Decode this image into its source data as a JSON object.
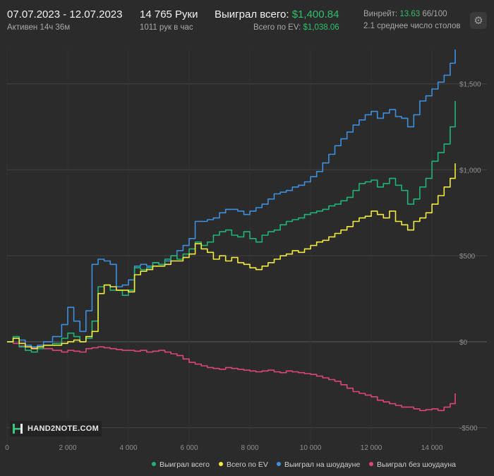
{
  "header": {
    "date_range": "07.07.2023 - 12.07.2023",
    "active": "Активен 14ч 36м",
    "hands": "14 765 Руки",
    "hands_per_hour": "1011 рук в час",
    "won_total_label": "Выиграл всего:",
    "won_total_value": "$1,400.84",
    "ev_total_label": "Всего по EV:",
    "ev_total_value": "$1,038.06",
    "winrate_label": "Винрейт:",
    "winrate_value": "13.63",
    "winrate_suffix": "66/100",
    "avg_tables": "2.1 среднее число столов"
  },
  "logo": {
    "text": "HAND2NOTE.COM"
  },
  "icons": {
    "settings": "gear-icon"
  },
  "colors": {
    "background": "#2b2b2b",
    "grid": "#444444",
    "won_total": "#1fb574",
    "ev": "#f2ea3c",
    "showdown": "#3d8fe0",
    "no_showdown": "#e0457a",
    "accent_green": "#2fc06a"
  },
  "chart_data": {
    "type": "line",
    "xlim": [
      0,
      14765
    ],
    "ylim": [
      -600,
      1700
    ],
    "x_ticks": [
      0,
      2000,
      4000,
      6000,
      8000,
      10000,
      12000,
      14000
    ],
    "x_tick_labels": [
      "0",
      "2 000",
      "4 000",
      "6 000",
      "8 000",
      "10 000",
      "12 000",
      "14 000"
    ],
    "y_ticks": [
      -500,
      0,
      500,
      1000,
      1500
    ],
    "y_tick_labels": [
      "-$500",
      "$0",
      "$500",
      "$1,000",
      "$1,500"
    ],
    "grid": true,
    "legend_position": "bottom-right",
    "series": [
      {
        "name": "Выиграл всего",
        "color_key": "won_total",
        "x": [
          0,
          200,
          400,
          600,
          800,
          1000,
          1200,
          1500,
          1800,
          2000,
          2200,
          2400,
          2600,
          2800,
          3000,
          3200,
          3400,
          3600,
          3800,
          4000,
          4200,
          4400,
          4600,
          4800,
          5000,
          5200,
          5400,
          5600,
          5800,
          6000,
          6200,
          6400,
          6600,
          6800,
          7000,
          7200,
          7400,
          7600,
          7800,
          8000,
          8200,
          8400,
          8600,
          8800,
          9000,
          9200,
          9400,
          9600,
          9800,
          10000,
          10200,
          10400,
          10600,
          10800,
          11000,
          11200,
          11400,
          11600,
          11800,
          12000,
          12200,
          12400,
          12600,
          12800,
          13000,
          13200,
          13400,
          13600,
          13800,
          14000,
          14200,
          14400,
          14600,
          14765
        ],
        "y": [
          0,
          30,
          -30,
          -50,
          -60,
          -40,
          -20,
          -10,
          20,
          50,
          30,
          0,
          20,
          120,
          320,
          330,
          300,
          300,
          270,
          300,
          430,
          420,
          430,
          460,
          450,
          480,
          500,
          480,
          510,
          540,
          580,
          560,
          580,
          620,
          640,
          650,
          620,
          610,
          640,
          600,
          580,
          620,
          640,
          650,
          680,
          700,
          710,
          720,
          740,
          750,
          760,
          770,
          790,
          800,
          820,
          840,
          880,
          920,
          930,
          940,
          900,
          920,
          950,
          910,
          880,
          800,
          830,
          900,
          950,
          1050,
          1100,
          1150,
          1250,
          1400
        ]
      },
      {
        "name": "Всего по EV",
        "color_key": "ev",
        "x": [
          0,
          200,
          400,
          600,
          800,
          1000,
          1200,
          1500,
          1800,
          2000,
          2200,
          2400,
          2600,
          2800,
          3000,
          3200,
          3400,
          3600,
          3800,
          4000,
          4200,
          4400,
          4600,
          4800,
          5000,
          5200,
          5400,
          5600,
          5800,
          6000,
          6200,
          6400,
          6600,
          6800,
          7000,
          7200,
          7400,
          7600,
          7800,
          8000,
          8200,
          8400,
          8600,
          8800,
          9000,
          9200,
          9400,
          9600,
          9800,
          10000,
          10200,
          10400,
          10600,
          10800,
          11000,
          11200,
          11400,
          11600,
          11800,
          12000,
          12200,
          12400,
          12600,
          12800,
          13000,
          13200,
          13400,
          13600,
          13800,
          14000,
          14200,
          14400,
          14600,
          14765
        ],
        "y": [
          0,
          20,
          -10,
          -30,
          -40,
          -30,
          -20,
          -20,
          -10,
          0,
          10,
          0,
          30,
          60,
          280,
          330,
          320,
          300,
          300,
          290,
          390,
          410,
          420,
          440,
          440,
          450,
          470,
          470,
          490,
          510,
          570,
          540,
          520,
          480,
          500,
          470,
          490,
          460,
          450,
          430,
          420,
          440,
          460,
          480,
          500,
          510,
          530,
          520,
          540,
          560,
          580,
          590,
          610,
          630,
          650,
          670,
          700,
          720,
          730,
          760,
          740,
          720,
          760,
          700,
          680,
          650,
          700,
          720,
          750,
          800,
          850,
          900,
          950,
          1038
        ]
      },
      {
        "name": "Выиграл на шоудауне",
        "color_key": "showdown",
        "x": [
          0,
          200,
          400,
          600,
          800,
          1000,
          1200,
          1500,
          1800,
          2000,
          2200,
          2400,
          2600,
          2800,
          3000,
          3200,
          3400,
          3600,
          3800,
          4000,
          4200,
          4400,
          4600,
          4800,
          5000,
          5200,
          5400,
          5600,
          5800,
          6000,
          6200,
          6400,
          6600,
          6800,
          7000,
          7200,
          7400,
          7600,
          7800,
          8000,
          8200,
          8400,
          8600,
          8800,
          9000,
          9200,
          9400,
          9600,
          9800,
          10000,
          10200,
          10400,
          10600,
          10800,
          11000,
          11200,
          11400,
          11600,
          11800,
          12000,
          12200,
          12400,
          12600,
          12800,
          13000,
          13200,
          13400,
          13600,
          13800,
          14000,
          14200,
          14400,
          14600,
          14765
        ],
        "y": [
          0,
          20,
          10,
          -20,
          -30,
          -20,
          0,
          30,
          100,
          200,
          120,
          60,
          180,
          450,
          480,
          470,
          450,
          320,
          330,
          360,
          440,
          450,
          440,
          460,
          450,
          470,
          500,
          530,
          560,
          600,
          700,
          700,
          710,
          720,
          750,
          770,
          770,
          760,
          740,
          760,
          780,
          800,
          830,
          860,
          870,
          880,
          900,
          910,
          930,
          960,
          990,
          1040,
          1090,
          1140,
          1180,
          1220,
          1260,
          1290,
          1320,
          1340,
          1300,
          1330,
          1350,
          1310,
          1300,
          1250,
          1320,
          1400,
          1430,
          1470,
          1510,
          1550,
          1620,
          1700
        ]
      },
      {
        "name": "Выиграл без шоудауна",
        "color_key": "no_showdown",
        "x": [
          0,
          200,
          400,
          600,
          800,
          1000,
          1200,
          1500,
          1800,
          2000,
          2200,
          2400,
          2600,
          2800,
          3000,
          3200,
          3400,
          3600,
          3800,
          4000,
          4200,
          4400,
          4600,
          4800,
          5000,
          5200,
          5400,
          5600,
          5800,
          6000,
          6200,
          6400,
          6600,
          6800,
          7000,
          7200,
          7400,
          7600,
          7800,
          8000,
          8200,
          8400,
          8600,
          8800,
          9000,
          9200,
          9400,
          9600,
          9800,
          10000,
          10200,
          10400,
          10600,
          10800,
          11000,
          11200,
          11400,
          11600,
          11800,
          12000,
          12200,
          12400,
          12600,
          12800,
          13000,
          13200,
          13400,
          13600,
          13800,
          14000,
          14200,
          14400,
          14600,
          14765
        ],
        "y": [
          0,
          -10,
          -25,
          -30,
          -35,
          -30,
          -40,
          -50,
          -60,
          -50,
          -55,
          -60,
          -40,
          -35,
          -30,
          -35,
          -40,
          -45,
          -50,
          -50,
          -55,
          -50,
          -60,
          -55,
          -50,
          -60,
          -70,
          -80,
          -100,
          -120,
          -130,
          -140,
          -150,
          -155,
          -160,
          -150,
          -155,
          -160,
          -165,
          -170,
          -175,
          -170,
          -165,
          -175,
          -180,
          -170,
          -175,
          -180,
          -185,
          -190,
          -200,
          -210,
          -220,
          -230,
          -250,
          -270,
          -290,
          -300,
          -310,
          -320,
          -340,
          -350,
          -360,
          -370,
          -380,
          -380,
          -390,
          -400,
          -395,
          -390,
          -400,
          -380,
          -360,
          -300
        ]
      }
    ]
  }
}
